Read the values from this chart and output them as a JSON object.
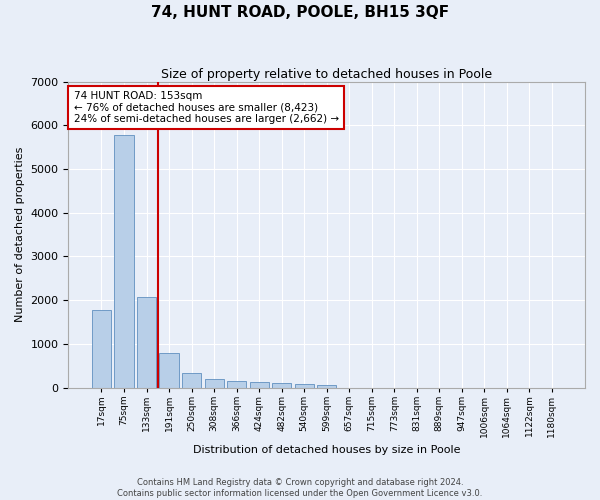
{
  "title": "74, HUNT ROAD, POOLE, BH15 3QF",
  "subtitle": "Size of property relative to detached houses in Poole",
  "xlabel": "Distribution of detached houses by size in Poole",
  "ylabel": "Number of detached properties",
  "bar_labels": [
    "17sqm",
    "75sqm",
    "133sqm",
    "191sqm",
    "250sqm",
    "308sqm",
    "366sqm",
    "424sqm",
    "482sqm",
    "540sqm",
    "599sqm",
    "657sqm",
    "715sqm",
    "773sqm",
    "831sqm",
    "889sqm",
    "947sqm",
    "1006sqm",
    "1064sqm",
    "1122sqm",
    "1180sqm"
  ],
  "bar_values": [
    1780,
    5780,
    2080,
    800,
    340,
    200,
    140,
    120,
    100,
    85,
    70,
    0,
    0,
    0,
    0,
    0,
    0,
    0,
    0,
    0,
    0
  ],
  "bar_color": "#b8cfe8",
  "bar_edge_color": "#6090c0",
  "vline_color": "#cc0000",
  "annotation_title": "74 HUNT ROAD: 153sqm",
  "annotation_line1": "← 76% of detached houses are smaller (8,423)",
  "annotation_line2": "24% of semi-detached houses are larger (2,662) →",
  "annotation_box_color": "#cc0000",
  "ylim": [
    0,
    7000
  ],
  "yticks": [
    0,
    1000,
    2000,
    3000,
    4000,
    5000,
    6000,
    7000
  ],
  "footer_line1": "Contains HM Land Registry data © Crown copyright and database right 2024.",
  "footer_line2": "Contains public sector information licensed under the Open Government Licence v3.0.",
  "bg_color": "#e8eef8",
  "plot_bg_color": "#e8eef8",
  "grid_color": "#ffffff",
  "title_fontsize": 11,
  "subtitle_fontsize": 9,
  "ylabel_fontsize": 8,
  "xlabel_fontsize": 8,
  "ytick_fontsize": 8,
  "xtick_fontsize": 6.5,
  "footer_fontsize": 6,
  "annot_fontsize": 7.5
}
